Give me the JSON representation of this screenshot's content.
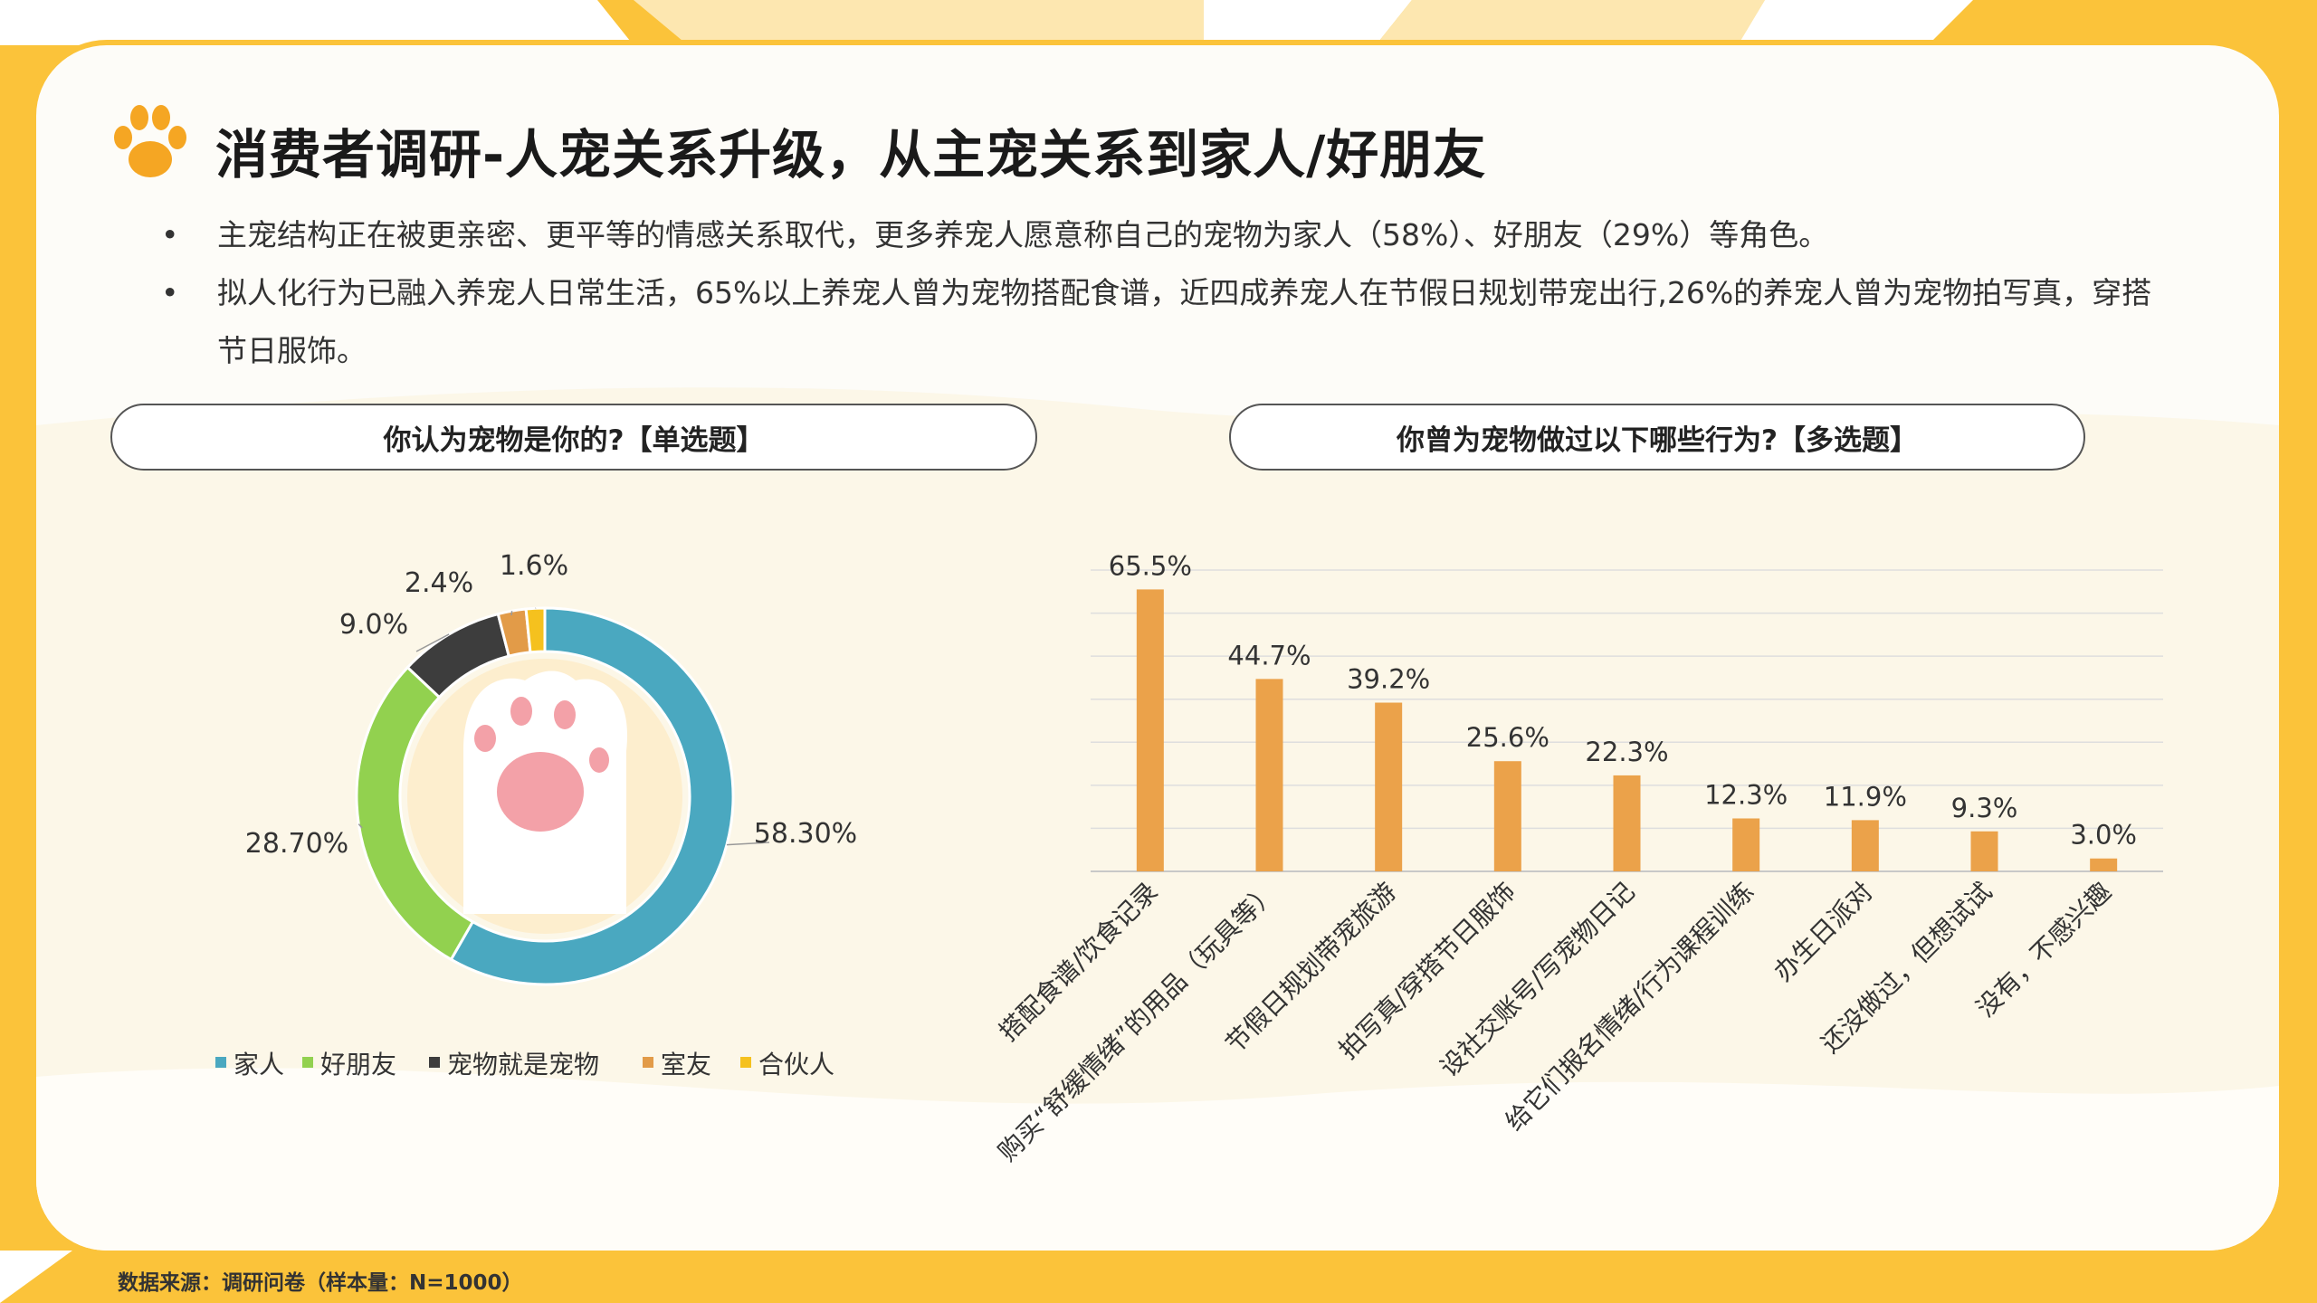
{
  "title": "消费者调研-人宠关系升级，从主宠关系到家人/好朋友",
  "bullets": [
    "主宠结构正在被更亲密、更平等的情感关系取代，更多养宠人愿意称自己的宠物为家人（58%）、好朋友（29%）等角色。",
    "拟人化行为已融入养宠人日常生活，65%以上养宠人曾为宠物搭配食谱，近四成养宠人在节假日规划带宠出行,26%的养宠人曾为宠物拍写真，穿搭节日服饰。"
  ],
  "source": "数据来源：调研问卷（样本量：N=1000）",
  "colors": {
    "accent": "#fbc33a",
    "bar": "#eba24a",
    "paw": "#f5a623"
  },
  "chart_data": [
    {
      "type": "pie",
      "title": "你认为宠物是你的?【单选题】",
      "series": [
        {
          "name": "家人",
          "value": 58.3,
          "label": "58.30%",
          "color": "#4aa8c0"
        },
        {
          "name": "好朋友",
          "value": 28.7,
          "label": "28.70%",
          "color": "#92d14f"
        },
        {
          "name": "宠物就是宠物",
          "value": 9.0,
          "label": "9.0%",
          "color": "#3d3d3d"
        },
        {
          "name": "室友",
          "value": 2.4,
          "label": "2.4%",
          "color": "#e29b48"
        },
        {
          "name": "合伙人",
          "value": 1.6,
          "label": "1.6%",
          "color": "#f5c11e"
        }
      ],
      "legend_position": "bottom"
    },
    {
      "type": "bar",
      "title": "你曾为宠物做过以下哪些行为?【多选题】",
      "categories": [
        "搭配食谱/饮食记录",
        "购买“舒缓情绪”的用品（玩具等）",
        "节假日规划带宠旅游",
        "拍写真/穿搭节日服饰",
        "设社交账号/写宠物日记",
        "给它们报名情绪/行为课程训练",
        "办生日派对",
        "还没做过，但想试试",
        "没有，不感兴趣"
      ],
      "values": [
        65.5,
        44.7,
        39.2,
        25.6,
        22.3,
        12.3,
        11.9,
        9.3,
        3.0
      ],
      "labels": [
        "65.5%",
        "44.7%",
        "39.2%",
        "25.6%",
        "22.3%",
        "12.3%",
        "11.9%",
        "9.3%",
        "3.0%"
      ],
      "ylim": [
        0,
        70
      ],
      "grid": true
    }
  ]
}
